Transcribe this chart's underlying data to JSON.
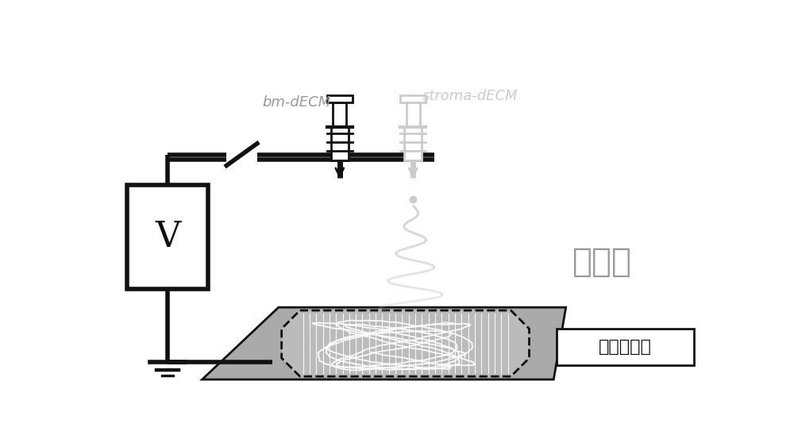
{
  "bg_color": "#ffffff",
  "label_bm_decm": "bm-dECM",
  "label_stroma_decm": "stroma-dECM",
  "label_layer": "第二层",
  "label_electrode": "平行电极开",
  "label_v": "V",
  "dark_color": "#111111",
  "mid_gray": "#999999",
  "light_gray": "#cccccc",
  "plate_gray": "#aaaaaa",
  "inner_gray": "#bbbbbb",
  "spiral_color": "#bbbbbb",
  "lw_thick": 4.0,
  "lw_thin": 2.0,
  "figw": 10.0,
  "figh": 5.63
}
